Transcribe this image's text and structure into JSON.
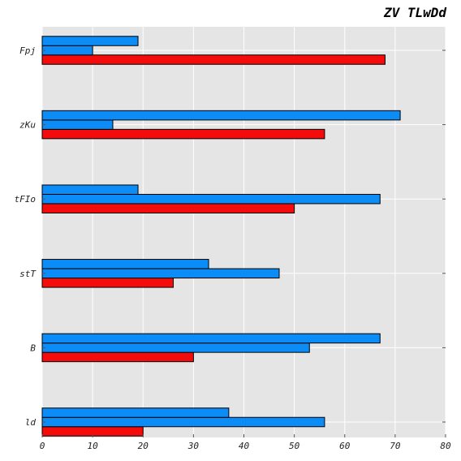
{
  "chart_data": {
    "type": "bar",
    "orientation": "horizontal",
    "title": "ZV TLwDd",
    "xlabel": "",
    "ylabel": "",
    "categories": [
      "ld",
      "B",
      "stT",
      "tFIo",
      "zKu",
      "Fpj"
    ],
    "series": [
      {
        "color": "#f40b0b",
        "values": [
          20,
          30,
          26,
          50,
          56,
          68
        ]
      },
      {
        "color": "#0c8cf6",
        "values": [
          56,
          53,
          47,
          67,
          14,
          10
        ]
      },
      {
        "color": "#0c8cf6",
        "values": [
          37,
          67,
          33,
          19,
          71,
          19
        ]
      }
    ],
    "xlim": [
      0,
      80
    ],
    "xticks": [
      "0",
      "10",
      "20",
      "30",
      "40",
      "50",
      "60",
      "70",
      "80"
    ],
    "grid": true,
    "background": "#e5e5e5"
  }
}
